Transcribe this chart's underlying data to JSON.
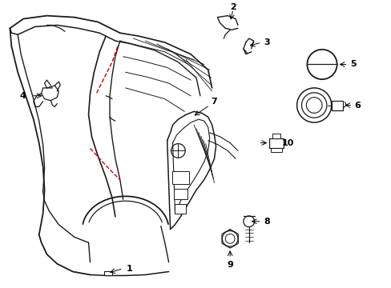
{
  "background_color": "#ffffff",
  "line_color": "#1a1a1a",
  "red_dashed_color": "#cc0000",
  "figsize": [
    4.89,
    3.6
  ],
  "dpi": 100,
  "xlim": [
    0,
    4.89
  ],
  "ylim": [
    0,
    3.6
  ]
}
